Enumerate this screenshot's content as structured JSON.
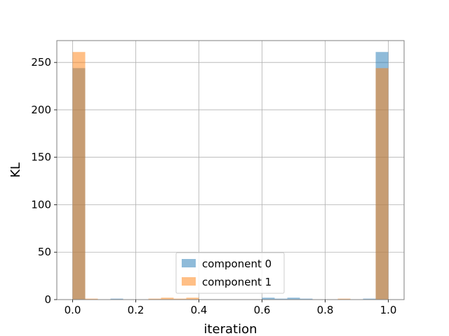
{
  "chart_data": {
    "type": "bar",
    "subtype": "overlapping-histogram",
    "title": "",
    "xlabel": "iteration",
    "ylabel": "KL",
    "xlim": [
      -0.05,
      1.05
    ],
    "ylim": [
      0,
      273
    ],
    "xticks": [
      0.0,
      0.2,
      0.4,
      0.6,
      0.8,
      1.0
    ],
    "xtick_labels": [
      "0.0",
      "0.2",
      "0.4",
      "0.6",
      "0.8",
      "1.0"
    ],
    "yticks": [
      0,
      50,
      100,
      150,
      200,
      250
    ],
    "ytick_labels": [
      "0",
      "50",
      "100",
      "150",
      "200",
      "250"
    ],
    "grid": true,
    "legend_position": "lower-center",
    "bin_edges": [
      0.0,
      0.04,
      0.08,
      0.12,
      0.16,
      0.2,
      0.24,
      0.28,
      0.32,
      0.36,
      0.4,
      0.44,
      0.48,
      0.52,
      0.56,
      0.6,
      0.64,
      0.68,
      0.72,
      0.76,
      0.8,
      0.84,
      0.88,
      0.92,
      0.96,
      1.0
    ],
    "series": [
      {
        "name": "component 0",
        "color": "#1f77b4",
        "opacity": 0.5,
        "counts": [
          244,
          0,
          0,
          1,
          0,
          0,
          0,
          0,
          0,
          0,
          0,
          0,
          0,
          0,
          0,
          2,
          1,
          2,
          1,
          0,
          0,
          0,
          0,
          1,
          261
        ]
      },
      {
        "name": "component 1",
        "color": "#ff7f0e",
        "opacity": 0.5,
        "counts": [
          261,
          1,
          0,
          0,
          0,
          0,
          1,
          2,
          1,
          2,
          0,
          0,
          0,
          0,
          0,
          0,
          0,
          0,
          0,
          0,
          0,
          1,
          0,
          0,
          244
        ]
      }
    ]
  }
}
